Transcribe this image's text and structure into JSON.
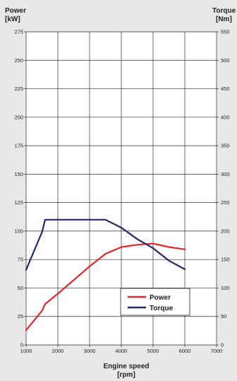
{
  "chart_data": {
    "type": "line",
    "y_left_label_line1": "Power",
    "y_left_label_line2": "[kW]",
    "y_right_label_line1": "Torque",
    "y_right_label_line2": "[Nm]",
    "x_label_line1": "Engine speed",
    "x_label_line2": "[rpm]",
    "x_range": [
      1000,
      7000
    ],
    "x_ticks": [
      1000,
      2000,
      3000,
      4000,
      5000,
      6000,
      7000
    ],
    "y_left_range": [
      0,
      275
    ],
    "y_left_ticks": [
      0,
      25,
      50,
      75,
      100,
      125,
      150,
      175,
      200,
      225,
      250,
      275
    ],
    "y_right_range": [
      0,
      550
    ],
    "y_right_ticks": [
      0,
      50,
      100,
      150,
      200,
      250,
      300,
      350,
      400,
      450,
      500,
      550
    ],
    "grid": true,
    "legend_position": "bottom-right",
    "series": [
      {
        "name": "Power",
        "axis": "left",
        "color": "#e8252b",
        "x": [
          1000,
          1500,
          1600,
          2000,
          2500,
          3000,
          3500,
          4000,
          4500,
          5000,
          5500,
          6000
        ],
        "y": [
          13,
          30,
          36,
          45,
          57,
          69,
          80,
          86,
          88,
          89,
          86,
          84
        ]
      },
      {
        "name": "Torque",
        "axis": "right",
        "color": "#1f2a6b",
        "x": [
          1000,
          1500,
          1600,
          2000,
          2500,
          3000,
          3500,
          4000,
          4500,
          5000,
          5500,
          6000
        ],
        "y": [
          132,
          198,
          220,
          220,
          220,
          220,
          220,
          206,
          186,
          170,
          148,
          133
        ]
      }
    ]
  }
}
